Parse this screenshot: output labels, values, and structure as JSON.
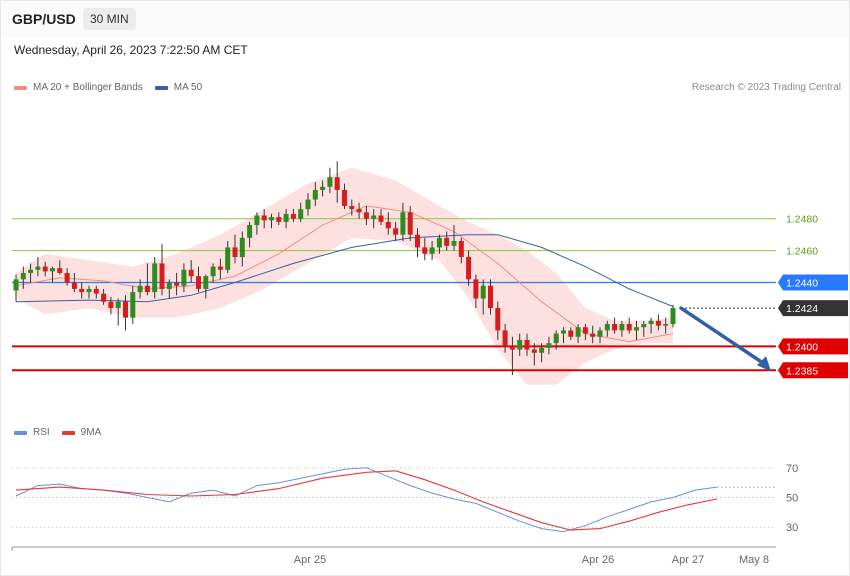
{
  "header": {
    "symbol": "GBP/USD",
    "timeframe": "30 MIN"
  },
  "datetime": "Wednesday, April 26, 2023 7:22:50 AM CET",
  "legend_main": [
    {
      "label": "MA 20 + Bollinger Bands",
      "color": "#f28b82"
    },
    {
      "label": "MA 50",
      "color": "#3a5fa0"
    }
  ],
  "legend_rsi": [
    {
      "label": "RSI",
      "color": "#6d8fd8"
    },
    {
      "label": "9MA",
      "color": "#e53935"
    }
  ],
  "copyright": "Research © 2023 Trading Central",
  "chart_data": {
    "type": "candlestick",
    "y_range": [
      1.2362,
      1.255
    ],
    "levels": [
      {
        "value": 1.248,
        "label": "1.2480",
        "kind": "resistance",
        "color": "#8bc34a"
      },
      {
        "value": 1.246,
        "label": "1.2460",
        "kind": "resistance",
        "color": "#8bc34a"
      },
      {
        "value": 1.244,
        "label": "1.2440",
        "kind": "pivot",
        "color": "#2979ff"
      },
      {
        "value": 1.2424,
        "label": "1.2424",
        "kind": "last",
        "color": "#333333"
      },
      {
        "value": 1.24,
        "label": "1.2400",
        "kind": "support",
        "color": "#e00000"
      },
      {
        "value": 1.2385,
        "label": "1.2385",
        "kind": "support",
        "color": "#e00000"
      }
    ],
    "x_labels": [
      "Apr 25",
      "Apr 26",
      "Apr 27",
      "May 8"
    ],
    "forecast_arrow": {
      "from": 1.2424,
      "to": 1.2385,
      "direction": "down"
    },
    "candles": [
      [
        1.2435,
        1.2445,
        1.2428,
        1.2442
      ],
      [
        1.2442,
        1.245,
        1.2436,
        1.2446
      ],
      [
        1.2446,
        1.2452,
        1.244,
        1.2448
      ],
      [
        1.2448,
        1.2456,
        1.2444,
        1.245
      ],
      [
        1.245,
        1.2453,
        1.2444,
        1.2447
      ],
      [
        1.2447,
        1.245,
        1.244,
        1.2449
      ],
      [
        1.2449,
        1.2454,
        1.2445,
        1.2446
      ],
      [
        1.2446,
        1.2449,
        1.2438,
        1.244
      ],
      [
        1.244,
        1.2446,
        1.2434,
        1.2436
      ],
      [
        1.2436,
        1.244,
        1.243,
        1.2434
      ],
      [
        1.2434,
        1.2438,
        1.243,
        1.2436
      ],
      [
        1.2436,
        1.2438,
        1.243,
        1.2433
      ],
      [
        1.2433,
        1.2436,
        1.2426,
        1.2428
      ],
      [
        1.2428,
        1.2431,
        1.242,
        1.2424
      ],
      [
        1.2424,
        1.243,
        1.2413,
        1.2428
      ],
      [
        1.2428,
        1.2432,
        1.241,
        1.2418
      ],
      [
        1.2418,
        1.2438,
        1.2414,
        1.2434
      ],
      [
        1.2434,
        1.2442,
        1.243,
        1.2438
      ],
      [
        1.2438,
        1.2452,
        1.2432,
        1.2434
      ],
      [
        1.2434,
        1.2456,
        1.243,
        1.2452
      ],
      [
        1.2452,
        1.2464,
        1.2432,
        1.2436
      ],
      [
        1.2436,
        1.2442,
        1.243,
        1.244
      ],
      [
        1.244,
        1.2446,
        1.2432,
        1.2438
      ],
      [
        1.2438,
        1.2452,
        1.2434,
        1.2448
      ],
      [
        1.2448,
        1.2454,
        1.244,
        1.2444
      ],
      [
        1.2444,
        1.245,
        1.2434,
        1.2436
      ],
      [
        1.2436,
        1.2445,
        1.243,
        1.2444
      ],
      [
        1.2444,
        1.2452,
        1.244,
        1.245
      ],
      [
        1.245,
        1.2455,
        1.2442,
        1.2448
      ],
      [
        1.2448,
        1.2466,
        1.2446,
        1.2462
      ],
      [
        1.2462,
        1.247,
        1.2452,
        1.2456
      ],
      [
        1.2456,
        1.2472,
        1.245,
        1.2468
      ],
      [
        1.2468,
        1.2478,
        1.2462,
        1.2476
      ],
      [
        1.2476,
        1.2484,
        1.247,
        1.2482
      ],
      [
        1.2482,
        1.2486,
        1.2474,
        1.2479
      ],
      [
        1.2479,
        1.2483,
        1.2474,
        1.2481
      ],
      [
        1.2481,
        1.2484,
        1.2476,
        1.2478
      ],
      [
        1.2478,
        1.2486,
        1.2474,
        1.2483
      ],
      [
        1.2483,
        1.2486,
        1.2478,
        1.248
      ],
      [
        1.248,
        1.249,
        1.2478,
        1.2486
      ],
      [
        1.2486,
        1.2496,
        1.2482,
        1.2492
      ],
      [
        1.2492,
        1.2503,
        1.2488,
        1.2498
      ],
      [
        1.2498,
        1.2504,
        1.2494,
        1.25
      ],
      [
        1.25,
        1.2512,
        1.2496,
        1.2506
      ],
      [
        1.2506,
        1.2516,
        1.249,
        1.2498
      ],
      [
        1.2498,
        1.2502,
        1.2486,
        1.2488
      ],
      [
        1.2488,
        1.2492,
        1.2482,
        1.2486
      ],
      [
        1.2486,
        1.249,
        1.248,
        1.2484
      ],
      [
        1.2484,
        1.2488,
        1.2476,
        1.248
      ],
      [
        1.248,
        1.2486,
        1.2474,
        1.2482
      ],
      [
        1.2482,
        1.2486,
        1.2476,
        1.2478
      ],
      [
        1.2478,
        1.2484,
        1.247,
        1.2474
      ],
      [
        1.2474,
        1.2478,
        1.2466,
        1.247
      ],
      [
        1.247,
        1.249,
        1.2466,
        1.2484
      ],
      [
        1.2484,
        1.2488,
        1.2466,
        1.247
      ],
      [
        1.247,
        1.2474,
        1.2456,
        1.2462
      ],
      [
        1.2462,
        1.2468,
        1.2454,
        1.2458
      ],
      [
        1.2458,
        1.2466,
        1.2454,
        1.2462
      ],
      [
        1.2462,
        1.247,
        1.2458,
        1.2468
      ],
      [
        1.2468,
        1.2472,
        1.246,
        1.2463
      ],
      [
        1.2463,
        1.2476,
        1.246,
        1.2466
      ],
      [
        1.2466,
        1.2468,
        1.2452,
        1.2456
      ],
      [
        1.2456,
        1.246,
        1.2438,
        1.2442
      ],
      [
        1.2442,
        1.2445,
        1.2424,
        1.243
      ],
      [
        1.243,
        1.2442,
        1.242,
        1.2438
      ],
      [
        1.2438,
        1.2442,
        1.242,
        1.2424
      ],
      [
        1.2424,
        1.2428,
        1.2404,
        1.241
      ],
      [
        1.241,
        1.2414,
        1.2396,
        1.24
      ],
      [
        1.24,
        1.2406,
        1.2382,
        1.2398
      ],
      [
        1.2398,
        1.2408,
        1.2394,
        1.2404
      ],
      [
        1.2404,
        1.2408,
        1.2394,
        1.2398
      ],
      [
        1.2398,
        1.2402,
        1.2388,
        1.2396
      ],
      [
        1.2396,
        1.2402,
        1.239,
        1.2399
      ],
      [
        1.2399,
        1.2406,
        1.2395,
        1.2402
      ],
      [
        1.2402,
        1.241,
        1.2398,
        1.2408
      ],
      [
        1.2408,
        1.2412,
        1.2402,
        1.241
      ],
      [
        1.241,
        1.2412,
        1.2404,
        1.2406
      ],
      [
        1.2406,
        1.2414,
        1.2402,
        1.2412
      ],
      [
        1.2412,
        1.2414,
        1.2404,
        1.2408
      ],
      [
        1.2408,
        1.2413,
        1.2402,
        1.2406
      ],
      [
        1.2406,
        1.2412,
        1.2402,
        1.241
      ],
      [
        1.241,
        1.2416,
        1.2406,
        1.2414
      ],
      [
        1.2414,
        1.2418,
        1.2408,
        1.241
      ],
      [
        1.241,
        1.2416,
        1.2406,
        1.2414
      ],
      [
        1.2414,
        1.2418,
        1.2408,
        1.241
      ],
      [
        1.241,
        1.2416,
        1.2404,
        1.2412
      ],
      [
        1.2412,
        1.2416,
        1.2406,
        1.2414
      ],
      [
        1.2414,
        1.2418,
        1.2408,
        1.2416
      ],
      [
        1.2416,
        1.242,
        1.241,
        1.2413
      ],
      [
        1.2413,
        1.2418,
        1.2408,
        1.2414
      ],
      [
        1.2414,
        1.2426,
        1.2412,
        1.2424
      ]
    ],
    "ma20": [
      [
        0,
        1.2438
      ],
      [
        6,
        1.2443
      ],
      [
        12,
        1.2441
      ],
      [
        18,
        1.2436
      ],
      [
        24,
        1.2438
      ],
      [
        30,
        1.2444
      ],
      [
        36,
        1.2458
      ],
      [
        42,
        1.2476
      ],
      [
        48,
        1.2488
      ],
      [
        54,
        1.2484
      ],
      [
        60,
        1.2472
      ],
      [
        66,
        1.2452
      ],
      [
        72,
        1.2428
      ],
      [
        78,
        1.2408
      ],
      [
        84,
        1.2403
      ],
      [
        90,
        1.2408
      ]
    ],
    "bb_upper": [
      [
        0,
        1.2446
      ],
      [
        4,
        1.2458
      ],
      [
        10,
        1.2454
      ],
      [
        16,
        1.245
      ],
      [
        22,
        1.2458
      ],
      [
        28,
        1.247
      ],
      [
        34,
        1.2486
      ],
      [
        40,
        1.2502
      ],
      [
        46,
        1.2512
      ],
      [
        52,
        1.2504
      ],
      [
        58,
        1.2488
      ],
      [
        62,
        1.2478
      ],
      [
        66,
        1.247
      ],
      [
        70,
        1.246
      ],
      [
        74,
        1.2446
      ],
      [
        78,
        1.2424
      ],
      [
        82,
        1.2416
      ],
      [
        86,
        1.2416
      ],
      [
        90,
        1.2418
      ]
    ],
    "bb_lower": [
      [
        0,
        1.243
      ],
      [
        4,
        1.242
      ],
      [
        10,
        1.2424
      ],
      [
        16,
        1.2418
      ],
      [
        22,
        1.2418
      ],
      [
        28,
        1.2424
      ],
      [
        34,
        1.2436
      ],
      [
        40,
        1.2452
      ],
      [
        46,
        1.2468
      ],
      [
        52,
        1.2466
      ],
      [
        58,
        1.2454
      ],
      [
        62,
        1.243
      ],
      [
        66,
        1.2398
      ],
      [
        70,
        1.2376
      ],
      [
        74,
        1.2376
      ],
      [
        78,
        1.239
      ],
      [
        82,
        1.2398
      ],
      [
        86,
        1.2402
      ],
      [
        90,
        1.2402
      ]
    ],
    "ma50": [
      [
        0,
        1.2428
      ],
      [
        10,
        1.2429
      ],
      [
        18,
        1.2428
      ],
      [
        24,
        1.2432
      ],
      [
        30,
        1.244
      ],
      [
        38,
        1.2452
      ],
      [
        46,
        1.2462
      ],
      [
        54,
        1.2468
      ],
      [
        62,
        1.247
      ],
      [
        66,
        1.247
      ],
      [
        72,
        1.2462
      ],
      [
        78,
        1.245
      ],
      [
        84,
        1.2436
      ],
      [
        90,
        1.2425
      ]
    ],
    "rsi_y_range": [
      20,
      80
    ],
    "rsi_levels": [
      70,
      50,
      30
    ],
    "rsi": [
      [
        0,
        51
      ],
      [
        3,
        58
      ],
      [
        6,
        59
      ],
      [
        9,
        56
      ],
      [
        12,
        55
      ],
      [
        15,
        53
      ],
      [
        18,
        50
      ],
      [
        21,
        47
      ],
      [
        24,
        53
      ],
      [
        27,
        55
      ],
      [
        30,
        51
      ],
      [
        33,
        58
      ],
      [
        36,
        60
      ],
      [
        39,
        63
      ],
      [
        42,
        66
      ],
      [
        45,
        69
      ],
      [
        48,
        70
      ],
      [
        51,
        64
      ],
      [
        54,
        58
      ],
      [
        57,
        53
      ],
      [
        60,
        49
      ],
      [
        63,
        46
      ],
      [
        66,
        40
      ],
      [
        69,
        34
      ],
      [
        72,
        29
      ],
      [
        75,
        27
      ],
      [
        78,
        31
      ],
      [
        81,
        37
      ],
      [
        84,
        42
      ],
      [
        87,
        47
      ],
      [
        90,
        50
      ],
      [
        93,
        55
      ],
      [
        96,
        57
      ]
    ],
    "rsi_ma": [
      [
        0,
        55
      ],
      [
        6,
        57
      ],
      [
        12,
        55
      ],
      [
        18,
        52
      ],
      [
        24,
        51
      ],
      [
        30,
        52
      ],
      [
        36,
        56
      ],
      [
        42,
        63
      ],
      [
        48,
        67
      ],
      [
        52,
        68
      ],
      [
        56,
        62
      ],
      [
        60,
        55
      ],
      [
        64,
        47
      ],
      [
        68,
        40
      ],
      [
        72,
        33
      ],
      [
        76,
        28
      ],
      [
        80,
        29
      ],
      [
        84,
        34
      ],
      [
        88,
        40
      ],
      [
        92,
        45
      ],
      [
        96,
        49
      ]
    ]
  }
}
